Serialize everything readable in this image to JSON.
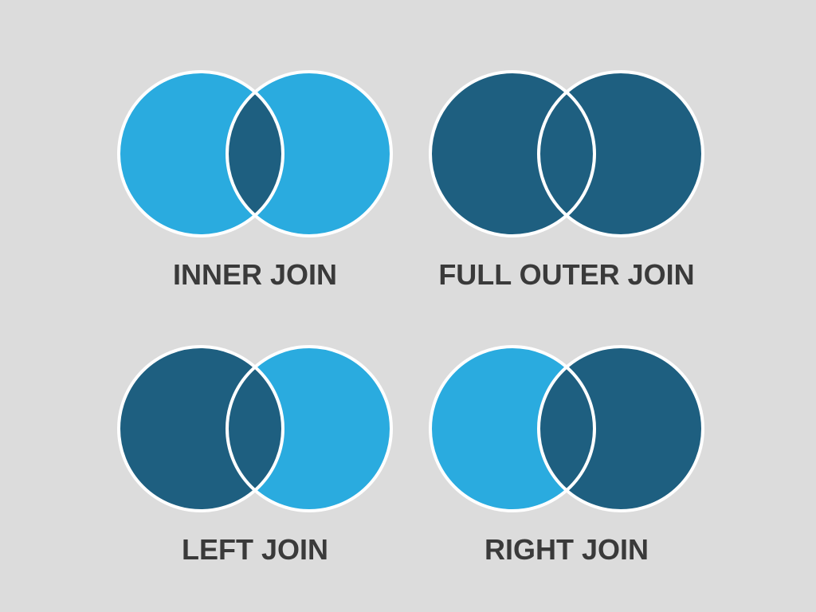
{
  "colors": {
    "background": "#dcdcdc",
    "included": "#1e5f80",
    "excluded": "#2aabdf",
    "outline": "#ffffff",
    "label_text": "#3a3a3a"
  },
  "diagrams": [
    {
      "id": "inner-join",
      "label": "INNER JOIN",
      "left_included": false,
      "intersection_included": true,
      "right_included": false
    },
    {
      "id": "full-outer-join",
      "label": "FULL OUTER JOIN",
      "left_included": true,
      "intersection_included": true,
      "right_included": true
    },
    {
      "id": "left-join",
      "label": "LEFT JOIN",
      "left_included": true,
      "intersection_included": true,
      "right_included": false
    },
    {
      "id": "right-join",
      "label": "RIGHT JOIN",
      "left_included": false,
      "intersection_included": true,
      "right_included": true
    }
  ]
}
